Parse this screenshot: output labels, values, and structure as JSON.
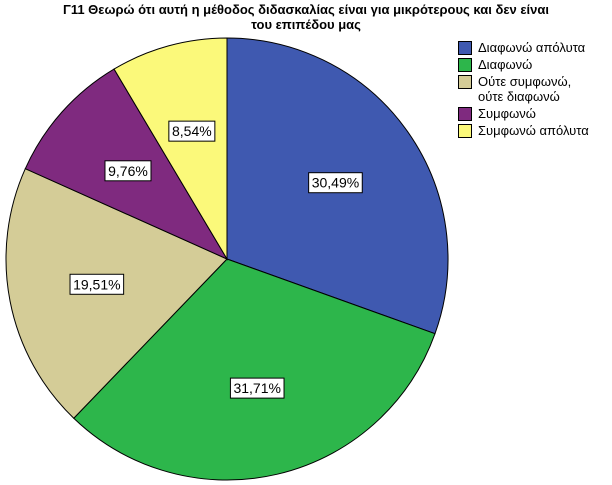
{
  "chart_data": {
    "type": "pie",
    "title": "Γ11 Θεωρώ ότι αυτή η μέθοδος διδασκαλίας είναι για μικρότερους και δεν είναι\nτου επιπέδου μας",
    "slices": [
      {
        "label": "Διαφωνώ απόλυτα",
        "value": 30.49,
        "data_label": "30,49%",
        "color": "#3f59b0"
      },
      {
        "label": "Διαφωνώ",
        "value": 31.71,
        "data_label": "31,71%",
        "color": "#2db64b"
      },
      {
        "label": "Ούτε συμφωνώ,\nούτε διαφωνώ",
        "value": 19.51,
        "data_label": "19,51%",
        "color": "#d4cc97"
      },
      {
        "label": "Συμφωνώ",
        "value": 9.76,
        "data_label": "9,76%",
        "color": "#7f2a7f"
      },
      {
        "label": "Συμφωνώ απόλυτα",
        "value": 8.54,
        "data_label": "8,54%",
        "color": "#fbf97a"
      }
    ],
    "legend_position": "right",
    "start_angle": "top, clockwise"
  }
}
